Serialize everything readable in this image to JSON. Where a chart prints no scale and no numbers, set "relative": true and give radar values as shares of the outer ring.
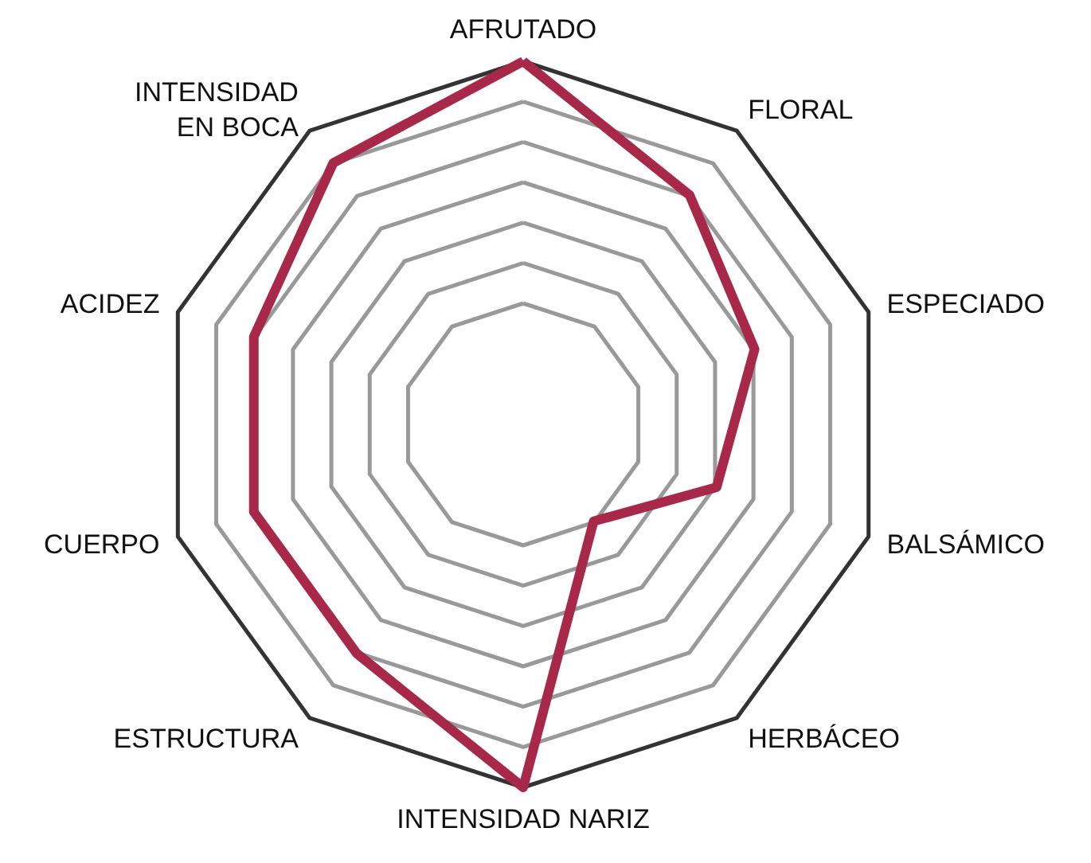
{
  "chart_data": {
    "type": "radar",
    "relative": true,
    "grid": true,
    "categories": [
      "AFRUTADO",
      "FLORAL",
      "ESPECIADO",
      "BALSÁMICO",
      "HERBÁCEO",
      "INTENSIDAD NARIZ",
      "ESTRUCTURA",
      "CUERPO",
      "ACIDEZ",
      "INTENSIDAD\nEN BOCA"
    ],
    "series": [
      {
        "color": "#a8284a",
        "values": [
          1,
          0.78,
          0.67,
          0.56,
          0.33,
          1,
          0.78,
          0.78,
          0.78,
          0.89
        ]
      }
    ]
  }
}
